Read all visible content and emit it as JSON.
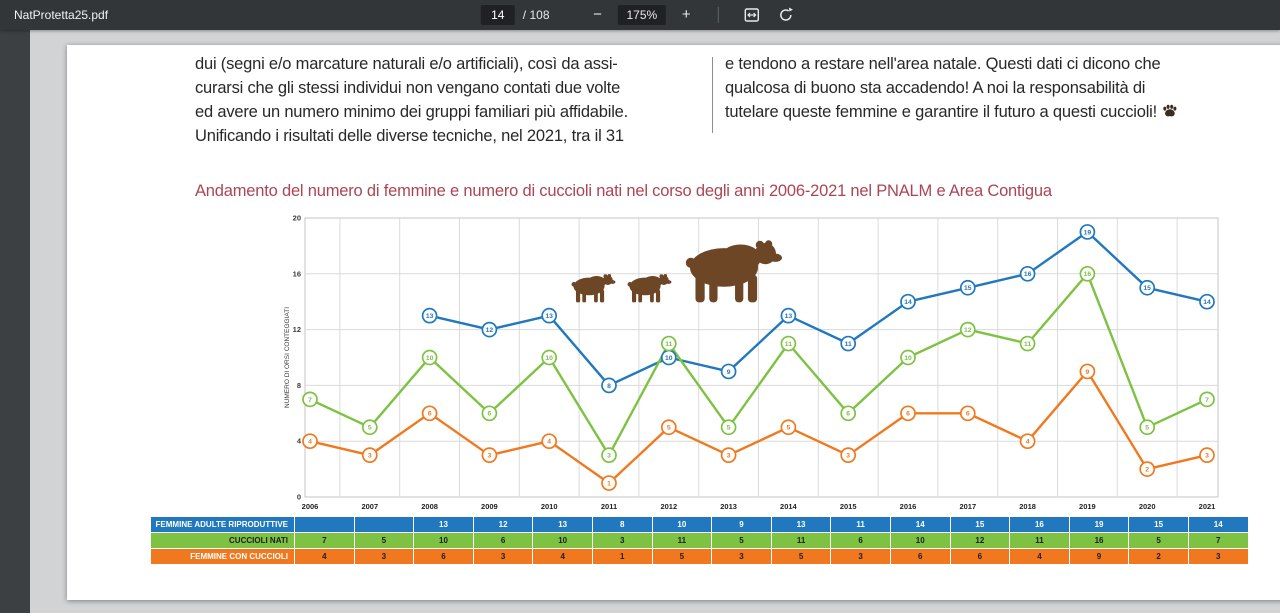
{
  "toolbar": {
    "filename": "NatProtetta25.pdf",
    "page_input": "14",
    "page_total": "/ 108",
    "zoom_out_label": "−",
    "zoom_level": "175%",
    "zoom_in_label": "+"
  },
  "document": {
    "left_column_lines": [
      "dui (segni e/o marcature naturali e/o artificiali), così da assi-",
      "curarsi che gli stessi individui non vengano contati due volte",
      "ed avere un numero minimo dei gruppi familiari più affidabile.",
      "Unificando i risultati delle diverse tecniche, nel 2021, tra il 31"
    ],
    "right_column_lines": [
      "e tendono a restare nell'area natale. Questi dati ci dicono che",
      "qualcosa di buono sta accadendo! A noi la responsabilità di",
      "tutelare queste femmine e garantire il futuro a questi cuccioli!"
    ],
    "chart_title": "Andamento del numero di femmine e numero di cuccioli nati nel corso degli anni 2006-2021 nel PNALM e Area Contigua"
  },
  "chart_data": {
    "type": "line",
    "title": "Andamento del numero di femmine e numero di cuccioli nati nel corso degli anni 2006-2021 nel PNALM e Area Contigua",
    "ylabel": "NUMERO DI ORSI CONTEGGIATI",
    "ylim": [
      0,
      20
    ],
    "yticks": [
      0,
      4,
      8,
      12,
      16,
      20
    ],
    "grid": true,
    "legend_position": "table-below",
    "bears_color": "#6d4626",
    "categories": [
      "2006",
      "2007",
      "2008",
      "2009",
      "2010",
      "2011",
      "2012",
      "2013",
      "2014",
      "2015",
      "2016",
      "2017",
      "2018",
      "2019",
      "2020",
      "2021"
    ],
    "series": [
      {
        "name": "FEMMINE ADULTE RIPRODUTTIVE",
        "color": "#2178be",
        "label_color": "#ffffff",
        "value_color": "#ffffff",
        "values": [
          null,
          null,
          13,
          12,
          13,
          8,
          10,
          9,
          13,
          11,
          14,
          15,
          16,
          19,
          15,
          14
        ]
      },
      {
        "name": "CUCCIOLI NATI",
        "color": "#7dc242",
        "label_color": "#1d1d1d",
        "value_color": "#1d1d1d",
        "values": [
          7,
          5,
          10,
          6,
          10,
          3,
          11,
          5,
          11,
          6,
          10,
          12,
          11,
          16,
          5,
          7
        ]
      },
      {
        "name": "FEMMINE CON CUCCIOLI",
        "color": "#f0791f",
        "label_color": "#ffffff",
        "value_color": "#1d1d1d",
        "values": [
          4,
          3,
          6,
          3,
          4,
          1,
          5,
          3,
          5,
          3,
          6,
          6,
          4,
          9,
          2,
          3
        ]
      }
    ]
  }
}
